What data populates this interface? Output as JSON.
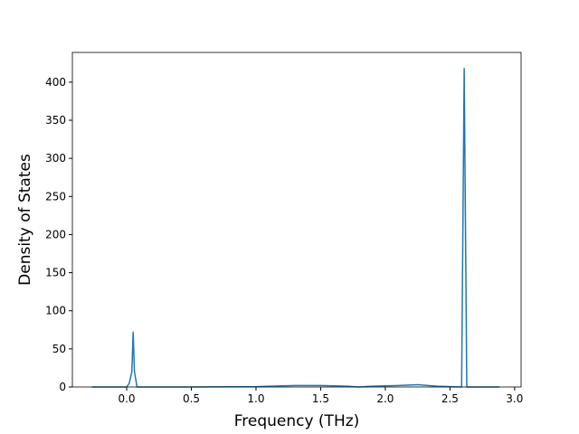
{
  "chart_data": {
    "type": "line",
    "x_label": "Frequency (THz)",
    "y_label": "Density of States",
    "x": [
      -0.27,
      0.0,
      0.02,
      0.04,
      0.05,
      0.06,
      0.08,
      0.5,
      1.0,
      1.3,
      1.5,
      1.7,
      1.8,
      1.9,
      2.1,
      2.25,
      2.4,
      2.5,
      2.59,
      2.61,
      2.63,
      2.88
    ],
    "series": [
      {
        "color": "#1f77b4",
        "values": [
          0,
          0,
          5,
          20,
          72,
          20,
          0,
          0,
          0.5,
          2,
          2,
          1,
          0,
          1,
          2,
          3,
          1,
          0.5,
          0,
          418,
          0,
          0
        ]
      }
    ],
    "xlim": [
      -0.42,
      3.05
    ],
    "ylim": [
      0,
      439
    ],
    "xticks": [
      {
        "value": 0,
        "label": "0.0"
      },
      {
        "value": 0.5,
        "label": "0.5"
      },
      {
        "value": 1,
        "label": "1.0"
      },
      {
        "value": 1.5,
        "label": "1.5"
      },
      {
        "value": 2,
        "label": "2.0"
      },
      {
        "value": 2.5,
        "label": "2.5"
      },
      {
        "value": 3,
        "label": "3.0"
      }
    ],
    "yticks": [
      0,
      50,
      100,
      150,
      200,
      250,
      300,
      350,
      400
    ]
  }
}
